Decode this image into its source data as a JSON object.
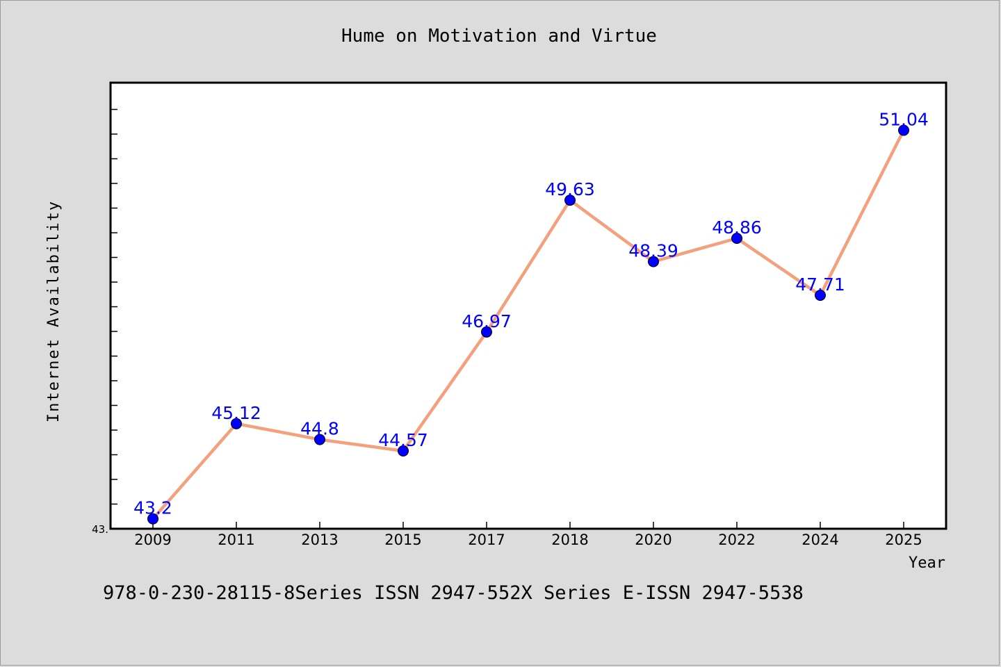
{
  "chart_data": {
    "type": "line",
    "title": "Hume on Motivation and Virtue",
    "xlabel": "Year",
    "ylabel": "Internet Availability",
    "categories": [
      "2009",
      "2011",
      "2013",
      "2015",
      "2017",
      "2018",
      "2020",
      "2022",
      "2024",
      "2025"
    ],
    "series": [
      {
        "values": [
          43.2,
          45.12,
          44.8,
          44.57,
          46.97,
          49.63,
          48.39,
          48.86,
          47.71,
          51.04
        ],
        "line_color": "#f4a07c",
        "marker_color": "#0000ff"
      }
    ],
    "data_labels": [
      "43.2",
      "45.12",
      "44.8",
      "44.57",
      "46.97",
      "49.63",
      "48.39",
      "48.86",
      "47.71",
      "51.04"
    ],
    "ylim": [
      43.0,
      52.0
    ],
    "y_tick_labels": [
      "43."
    ],
    "grid": false,
    "legend": "none"
  },
  "footer": {
    "text": "978-0-230-28115-8Series ISSN 2947-552X Series E-ISSN 2947-5538"
  }
}
